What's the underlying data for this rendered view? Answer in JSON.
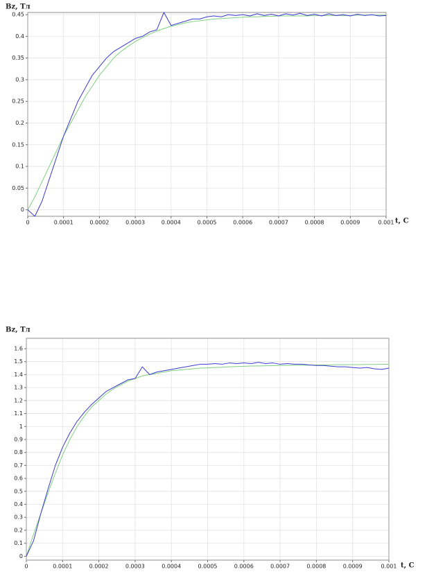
{
  "chart_data": [
    {
      "type": "line",
      "ylabel": "Bz, Тл",
      "xlabel": "t, С",
      "x": [
        0,
        2e-05,
        4e-05,
        6e-05,
        8e-05,
        0.0001,
        0.00012,
        0.00014,
        0.00016,
        0.00018,
        0.0002,
        0.00022,
        0.00024,
        0.00026,
        0.00028,
        0.0003,
        0.00032,
        0.00034,
        0.00036,
        0.00038,
        0.0004,
        0.00042,
        0.00044,
        0.00046,
        0.00048,
        0.0005,
        0.00052,
        0.00054,
        0.00056,
        0.00058,
        0.0006,
        0.00062,
        0.00064,
        0.00066,
        0.00068,
        0.0007,
        0.00072,
        0.00074,
        0.00076,
        0.00078,
        0.0008,
        0.00082,
        0.00084,
        0.00086,
        0.00088,
        0.0009,
        0.00092,
        0.00094,
        0.00096,
        0.00098,
        0.001
      ],
      "series": [
        {
          "color": "#3a3ad0",
          "values": [
            0,
            -0.015,
            0.02,
            0.07,
            0.12,
            0.17,
            0.21,
            0.25,
            0.28,
            0.31,
            0.33,
            0.35,
            0.365,
            0.375,
            0.385,
            0.395,
            0.4,
            0.41,
            0.415,
            0.455,
            0.425,
            0.43,
            0.435,
            0.44,
            0.44,
            0.445,
            0.447,
            0.445,
            0.45,
            0.448,
            0.45,
            0.447,
            0.452,
            0.448,
            0.451,
            0.447,
            0.452,
            0.449,
            0.453,
            0.448,
            0.451,
            0.447,
            0.452,
            0.448,
            0.45,
            0.447,
            0.451,
            0.448,
            0.45,
            0.447,
            0.448
          ]
        },
        {
          "color": "#7fd07f",
          "values": [
            0,
            0.03,
            0.065,
            0.1,
            0.135,
            0.17,
            0.2,
            0.23,
            0.26,
            0.285,
            0.31,
            0.33,
            0.35,
            0.365,
            0.377,
            0.388,
            0.397,
            0.405,
            0.412,
            0.418,
            0.423,
            0.427,
            0.431,
            0.434,
            0.436,
            0.438,
            0.44,
            0.441,
            0.442,
            0.443,
            0.444,
            0.445,
            0.445,
            0.446,
            0.446,
            0.447,
            0.447,
            0.447,
            0.447,
            0.447,
            0.448,
            0.448,
            0.448,
            0.448,
            0.448,
            0.448,
            0.449,
            0.449,
            0.449,
            0.449,
            0.449
          ]
        }
      ],
      "xlim": [
        0,
        0.001
      ],
      "xticks": [
        0,
        0.0001,
        0.0002,
        0.0003,
        0.0004,
        0.0005,
        0.0006,
        0.0007,
        0.0008,
        0.0009,
        0.001
      ],
      "ylim": [
        -0.015,
        0.455
      ],
      "yticks": [
        0,
        0.05,
        0.1,
        0.15,
        0.2,
        0.25,
        0.3,
        0.35,
        0.4,
        0.45
      ],
      "grid": true
    },
    {
      "type": "line",
      "ylabel": "Bz, Тл",
      "xlabel": "t, С",
      "x": [
        0,
        2e-05,
        4e-05,
        6e-05,
        8e-05,
        0.0001,
        0.00012,
        0.00014,
        0.00016,
        0.00018,
        0.0002,
        0.00022,
        0.00024,
        0.00026,
        0.00028,
        0.0003,
        0.00032,
        0.00034,
        0.00036,
        0.00038,
        0.0004,
        0.00042,
        0.00044,
        0.00046,
        0.00048,
        0.0005,
        0.00052,
        0.00054,
        0.00056,
        0.00058,
        0.0006,
        0.00062,
        0.00064,
        0.00066,
        0.00068,
        0.0007,
        0.00072,
        0.00074,
        0.00076,
        0.00078,
        0.0008,
        0.00082,
        0.00084,
        0.00086,
        0.00088,
        0.0009,
        0.00092,
        0.00094,
        0.00096,
        0.00098,
        0.001
      ],
      "series": [
        {
          "color": "#3a3ad0",
          "values": [
            0,
            0.12,
            0.33,
            0.52,
            0.7,
            0.84,
            0.95,
            1.04,
            1.11,
            1.17,
            1.22,
            1.27,
            1.3,
            1.33,
            1.36,
            1.37,
            1.46,
            1.4,
            1.42,
            1.43,
            1.44,
            1.45,
            1.46,
            1.47,
            1.48,
            1.48,
            1.485,
            1.48,
            1.49,
            1.485,
            1.49,
            1.485,
            1.495,
            1.485,
            1.49,
            1.48,
            1.485,
            1.48,
            1.48,
            1.475,
            1.47,
            1.47,
            1.465,
            1.46,
            1.46,
            1.455,
            1.45,
            1.455,
            1.445,
            1.44,
            1.45
          ]
        },
        {
          "color": "#7fd07f",
          "values": [
            0,
            0.17,
            0.33,
            0.49,
            0.64,
            0.78,
            0.9,
            1.0,
            1.08,
            1.15,
            1.2,
            1.25,
            1.29,
            1.32,
            1.35,
            1.37,
            1.39,
            1.4,
            1.41,
            1.42,
            1.43,
            1.435,
            1.44,
            1.445,
            1.45,
            1.452,
            1.455,
            1.457,
            1.46,
            1.462,
            1.464,
            1.466,
            1.467,
            1.468,
            1.469,
            1.47,
            1.471,
            1.472,
            1.472,
            1.473,
            1.474,
            1.474,
            1.475,
            1.476,
            1.476,
            1.477,
            1.477,
            1.478,
            1.478,
            1.479,
            1.48
          ]
        }
      ],
      "xlim": [
        0,
        0.001
      ],
      "xticks": [
        0,
        0.0001,
        0.0002,
        0.0003,
        0.0004,
        0.0005,
        0.0006,
        0.0007,
        0.0008,
        0.0009,
        0.001
      ],
      "ylim": [
        -0.03,
        1.68
      ],
      "yticks": [
        0,
        0.1,
        0.2,
        0.3,
        0.4,
        0.5,
        0.6,
        0.7,
        0.8,
        0.9,
        1,
        1.1,
        1.2,
        1.3,
        1.4,
        1.5,
        1.6
      ],
      "grid": true
    }
  ]
}
